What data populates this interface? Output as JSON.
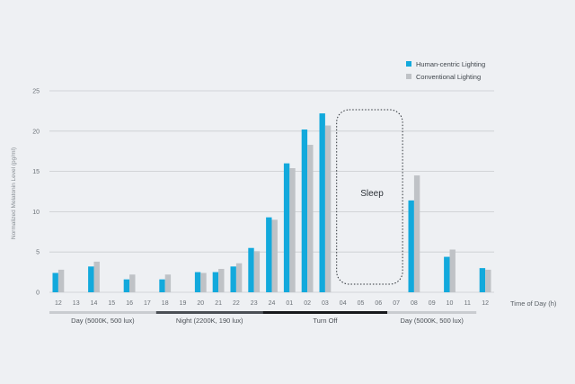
{
  "legend": {
    "human": "Human-centric Lighting",
    "conventional": "Conventional Lighting"
  },
  "labels": {
    "ylabel": "Normalized Melatonin Level (pg/ml)",
    "xlabel": "Time of Day (h)",
    "sleep": "Sleep"
  },
  "periods": [
    {
      "label": "Day (5000K, 500 lux)",
      "start": 0,
      "end": 6,
      "color": "#c9ccd0"
    },
    {
      "label": "Night (2200K, 190 lux)",
      "start": 6,
      "end": 12,
      "color": "#4b4f55"
    },
    {
      "label": "Turn Off",
      "start": 12,
      "end": 19,
      "color": "#17191c"
    },
    {
      "label": "Day (5000K, 500 lux)",
      "start": 19,
      "end": 24,
      "color": "#c9ccd0"
    }
  ],
  "colors": {
    "human": "#12a9dc",
    "conventional": "#bfc2c6",
    "grid": "#c9ccd0",
    "sleep_box": "#2d3238"
  },
  "chart_data": {
    "type": "bar",
    "categories": [
      "12",
      "13",
      "14",
      "15",
      "16",
      "17",
      "18",
      "19",
      "20",
      "21",
      "22",
      "23",
      "24",
      "01",
      "02",
      "03",
      "04",
      "05",
      "06",
      "07",
      "08",
      "09",
      "10",
      "11",
      "12"
    ],
    "series": [
      {
        "name": "Human-centric Lighting",
        "values": [
          2.4,
          0,
          3.2,
          0,
          1.6,
          0,
          1.6,
          0,
          2.5,
          2.5,
          3.2,
          5.5,
          9.3,
          16.0,
          20.2,
          22.2,
          0,
          0,
          0,
          0,
          11.4,
          0,
          4.4,
          0,
          3.0
        ]
      },
      {
        "name": "Conventional Lighting",
        "values": [
          2.8,
          0,
          3.8,
          0,
          2.2,
          0,
          2.2,
          0,
          2.4,
          2.9,
          3.6,
          5.1,
          9.0,
          15.4,
          18.3,
          20.7,
          0,
          0,
          0,
          0,
          14.5,
          0,
          5.3,
          0,
          2.8
        ]
      }
    ],
    "ylabel": "Normalized Melatonin Level (pg/ml)",
    "xlabel": "Time of Day (h)",
    "ylim": [
      0,
      25
    ],
    "yticks": [
      0,
      5,
      10,
      15,
      20,
      25
    ],
    "grid": true,
    "legend_position": "top-right",
    "annotations": [
      {
        "text": "Sleep",
        "from": "04",
        "to": "07"
      }
    ]
  }
}
